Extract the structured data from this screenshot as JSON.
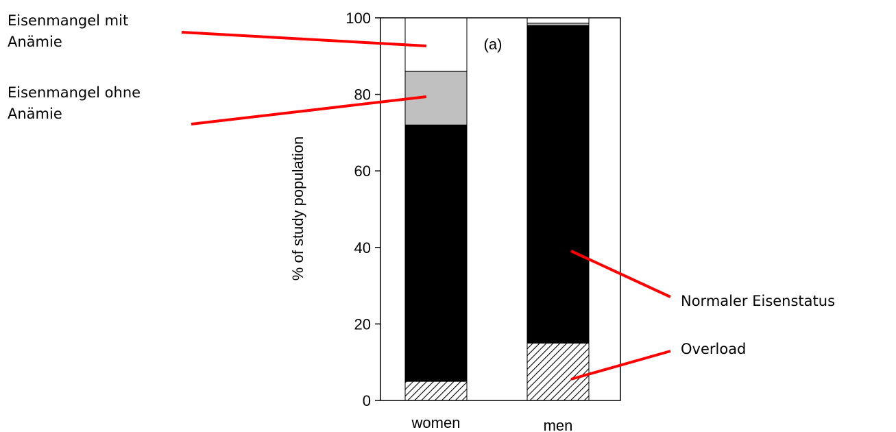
{
  "chart_data": {
    "type": "bar",
    "stacked": true,
    "categories": [
      "women",
      "men"
    ],
    "ylabel": "% of study population",
    "ylim": [
      0,
      100
    ],
    "yticks": [
      0,
      20,
      40,
      60,
      80,
      100
    ],
    "panel_label": "(a)",
    "series": [
      {
        "key": "overload",
        "values": [
          5,
          15
        ],
        "fill": "hatch"
      },
      {
        "key": "normal",
        "values": [
          67,
          83
        ],
        "fill": "#000000"
      },
      {
        "key": "deficiency_without_anemia",
        "values": [
          14,
          0.6
        ],
        "fill": "#c0c0c0"
      },
      {
        "key": "deficiency_with_anemia",
        "values": [
          14,
          1.4
        ],
        "fill": "#ffffff"
      }
    ],
    "annotations": [
      {
        "key": "deficiency_with_anemia",
        "lines": [
          "Eisenmangel mit",
          "Anämie"
        ]
      },
      {
        "key": "deficiency_without_anemia",
        "lines": [
          "Eisenmangel ohne",
          "Anämie"
        ]
      },
      {
        "key": "normal",
        "lines": [
          "Normaler Eisenstatus"
        ]
      },
      {
        "key": "overload",
        "lines": [
          "Overload"
        ]
      }
    ],
    "colors": {
      "leader": "#ff0000",
      "axis": "#000000",
      "gray": "#c0c0c0"
    }
  }
}
